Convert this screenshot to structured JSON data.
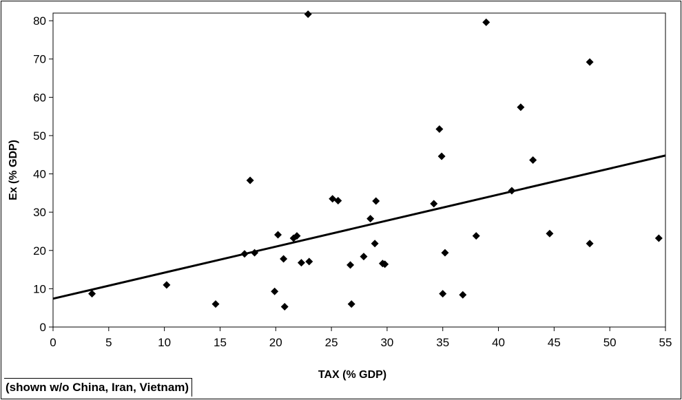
{
  "chart_data": {
    "type": "scatter",
    "title": "",
    "xlabel": "TAX (% GDP)",
    "ylabel": "Ex (% GDP)",
    "xlim": [
      0,
      55
    ],
    "ylim": [
      0,
      82
    ],
    "xticks": [
      0,
      5,
      10,
      15,
      20,
      25,
      30,
      35,
      40,
      45,
      50,
      55
    ],
    "yticks": [
      0,
      10,
      20,
      30,
      40,
      50,
      60,
      70,
      80
    ],
    "grid": false,
    "legend": "none",
    "marker": "diamond",
    "marker_color": "#000000",
    "points": [
      {
        "x": 3.5,
        "y": 8.7
      },
      {
        "x": 10.2,
        "y": 11.0
      },
      {
        "x": 14.6,
        "y": 6.0
      },
      {
        "x": 17.2,
        "y": 19.1
      },
      {
        "x": 17.7,
        "y": 38.3
      },
      {
        "x": 18.1,
        "y": 19.4
      },
      {
        "x": 19.9,
        "y": 9.3
      },
      {
        "x": 20.2,
        "y": 24.1
      },
      {
        "x": 20.7,
        "y": 17.8
      },
      {
        "x": 20.8,
        "y": 5.3
      },
      {
        "x": 21.6,
        "y": 23.2
      },
      {
        "x": 21.9,
        "y": 23.8
      },
      {
        "x": 22.3,
        "y": 16.8
      },
      {
        "x": 22.9,
        "y": 81.7
      },
      {
        "x": 23.0,
        "y": 17.1
      },
      {
        "x": 25.1,
        "y": 33.5
      },
      {
        "x": 25.6,
        "y": 33.0
      },
      {
        "x": 26.7,
        "y": 16.2
      },
      {
        "x": 26.8,
        "y": 6.0
      },
      {
        "x": 27.9,
        "y": 18.4
      },
      {
        "x": 28.5,
        "y": 28.3
      },
      {
        "x": 28.9,
        "y": 21.8
      },
      {
        "x": 29.0,
        "y": 32.9
      },
      {
        "x": 29.6,
        "y": 16.6
      },
      {
        "x": 29.8,
        "y": 16.4
      },
      {
        "x": 34.2,
        "y": 32.2
      },
      {
        "x": 34.7,
        "y": 51.7
      },
      {
        "x": 34.9,
        "y": 44.6
      },
      {
        "x": 35.0,
        "y": 8.7
      },
      {
        "x": 35.2,
        "y": 19.4
      },
      {
        "x": 36.8,
        "y": 8.4
      },
      {
        "x": 38.0,
        "y": 23.8
      },
      {
        "x": 38.9,
        "y": 79.6
      },
      {
        "x": 41.2,
        "y": 35.6
      },
      {
        "x": 42.0,
        "y": 57.4
      },
      {
        "x": 43.1,
        "y": 43.6
      },
      {
        "x": 44.6,
        "y": 24.4
      },
      {
        "x": 48.2,
        "y": 69.2
      },
      {
        "x": 48.2,
        "y": 21.8
      },
      {
        "x": 54.4,
        "y": 23.2
      }
    ],
    "trendline": {
      "type": "linear",
      "x": [
        0,
        55
      ],
      "y": [
        7.4,
        44.8
      ]
    },
    "annotations": [
      "(shown w/o China, Iran, Vietnam)"
    ]
  }
}
